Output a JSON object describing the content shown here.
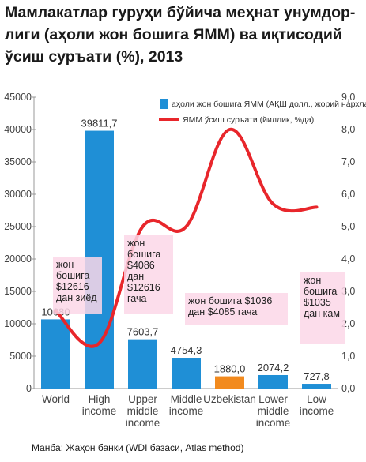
{
  "title": "Мамлакатлар гуруҳи бўйича меҳнат унумдор-лиги (аҳоли жон бошига ЯММ) ва иқтисодий ўсиш суръати (%), 2013",
  "source": "Манба: Жаҳон банки (WDI базаси, Atlas method)",
  "annotations": [
    "жон бошига $12616 дан зиёд",
    "жон бошига $4086 дан $12616 гача",
    "жон бошига $1036 дан $4085 гача",
    "жон бошига $1035 дан кам"
  ],
  "chart_data": {
    "type": "bar",
    "categories": [
      "World",
      "High income",
      "Upper middle income",
      "Middle income",
      "Uzbekistan",
      "Lower middle income",
      "Low income"
    ],
    "series": [
      {
        "name": "аҳоли жон бошига ЯММ (АҚШ долл., жорий нархларда)",
        "type": "bar",
        "axis": "left",
        "values": [
          10680,
          39811.7,
          7603.7,
          4754.3,
          1880.0,
          2074.2,
          727.8
        ],
        "labels": [
          "10680",
          "39811,7",
          "7603,7",
          "4754,3",
          "1880,0",
          "2074,2",
          "727,8"
        ],
        "colors": [
          "#1f8fd6",
          "#1f8fd6",
          "#1f8fd6",
          "#1f8fd6",
          "#f28a1e",
          "#1f8fd6",
          "#1f8fd6"
        ]
      },
      {
        "name": "ЯММ ўсиш суръати (йиллик, %да)",
        "type": "line",
        "axis": "right",
        "color": "#e8262b",
        "values": [
          2.4,
          1.4,
          5.0,
          5.0,
          8.0,
          5.7,
          5.6
        ]
      }
    ],
    "y_left": {
      "min": 0,
      "max": 45000,
      "ticks": [
        0,
        5000,
        10000,
        15000,
        20000,
        25000,
        30000,
        35000,
        40000,
        45000
      ]
    },
    "y_right": {
      "min": 0,
      "max": 9.0,
      "ticks": [
        "0,0",
        "1,0",
        "2,0",
        "3,0",
        "4,0",
        "5,0",
        "6,0",
        "7,0",
        "8,0",
        "9,0"
      ]
    },
    "legend_position": "top-right"
  }
}
